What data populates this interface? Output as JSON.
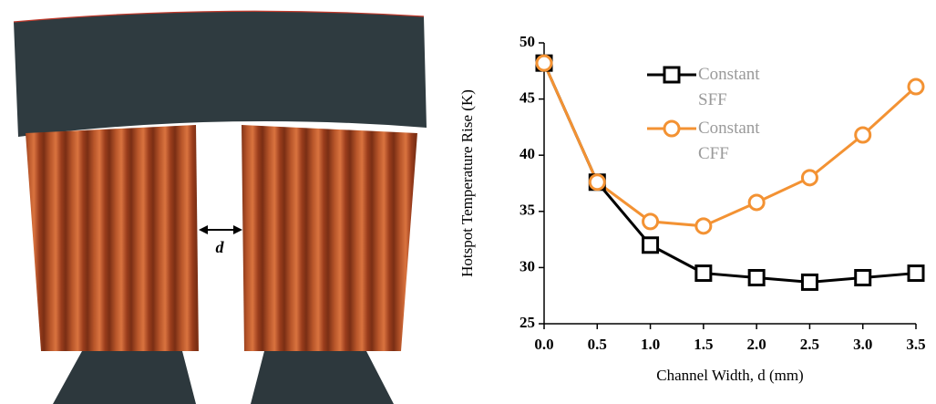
{
  "illustration": {
    "label": "d"
  },
  "chart_data": {
    "type": "line",
    "x_label": "Channel Width, d (mm)",
    "y_label": "Hotspot Temperature Rise (K)",
    "x": [
      0,
      0.5,
      1,
      1.5,
      2,
      2.5,
      3,
      3.5
    ],
    "series": [
      {
        "name": "Constant SFF",
        "color": "#000000",
        "marker": "square",
        "values": [
          48.2,
          37.6,
          32.0,
          29.5,
          29.1,
          28.7,
          29.1,
          29.5
        ]
      },
      {
        "name": "Constant CFF",
        "color": "#f39233",
        "marker": "circle",
        "values": [
          48.2,
          37.6,
          34.1,
          33.7,
          35.8,
          38.0,
          41.8,
          46.1
        ]
      }
    ],
    "xlim": [
      0,
      3.5
    ],
    "xticks": [
      {
        "value": 0,
        "label": "0.0"
      },
      0.5,
      {
        "value": 1,
        "label": "1.0"
      },
      1.5,
      {
        "value": 2,
        "label": "2.0"
      },
      2.5,
      {
        "value": 3,
        "label": "3.0"
      },
      3.5
    ],
    "ylim": [
      25,
      50
    ],
    "yticks": [
      25,
      30,
      35,
      40,
      45,
      50
    ],
    "grid": false,
    "legend": "top"
  }
}
